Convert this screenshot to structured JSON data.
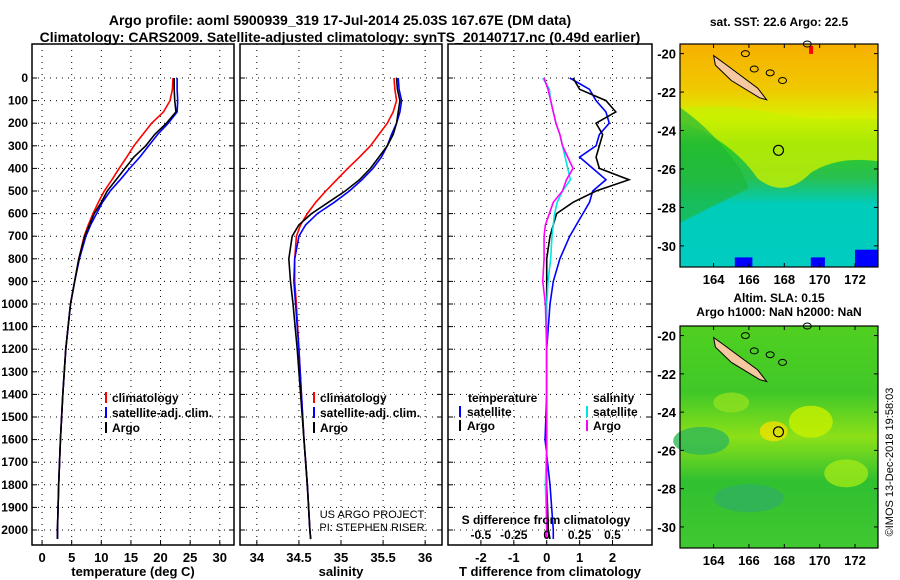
{
  "title_line1": "Argo profile: aoml 5900939_319 17-Jul-2014 25.03S 167.67E (DM data)",
  "title_line2": "Climatology: CARS2009. Satellite-adjusted climatology: synTS_20140717.nc (0.49d earlier)",
  "copyright": "©IMOS 13-Dec-2018 19:58:03",
  "attribution": [
    "US ARGO PROJECT",
    "PI: STEPHEN RISER"
  ],
  "colors": {
    "climatology": "#ff0000",
    "satellite": "#0000ff",
    "argo": "#000000",
    "sal_satellite": "#00e5e5",
    "sal_argo": "#ff00ff"
  },
  "chart_data": [
    {
      "type": "line",
      "xlabel": "temperature (deg C)",
      "ylabel": "",
      "xlim": [
        -1.7,
        32.4
      ],
      "ylim": [
        2050,
        -50
      ],
      "xticks": [
        "0",
        "5",
        "10",
        "15",
        "20",
        "25",
        "30"
      ],
      "xtick_values": [
        0,
        5,
        10,
        15,
        20,
        25,
        30
      ],
      "yticks": [
        "0",
        "100",
        "200",
        "300",
        "400",
        "500",
        "600",
        "700",
        "800",
        "900",
        "1000",
        "1100",
        "1200",
        "1300",
        "1400",
        "1500",
        "1600",
        "1700",
        "1800",
        "1900",
        "2000"
      ],
      "ytick_values": [
        0,
        100,
        200,
        300,
        400,
        500,
        600,
        700,
        800,
        900,
        1000,
        1100,
        1200,
        1300,
        1400,
        1500,
        1600,
        1700,
        1800,
        1900,
        2000
      ],
      "legend": [
        "climatology",
        "satellite-adj. clim.",
        "Argo"
      ],
      "depth": [
        0,
        50,
        100,
        150,
        200,
        250,
        300,
        350,
        400,
        450,
        500,
        550,
        600,
        650,
        700,
        800,
        900,
        1000,
        1200,
        1400,
        1600,
        1800,
        2000,
        2040
      ],
      "series": [
        {
          "name": "climatology",
          "values": [
            22.1,
            22.0,
            21.6,
            20.5,
            18.5,
            17,
            15.5,
            14.3,
            13,
            11.8,
            10.5,
            9.5,
            8.6,
            7.8,
            7.1,
            6.2,
            5.5,
            4.8,
            4,
            3.5,
            3.1,
            2.8,
            2.6,
            2.6
          ]
        },
        {
          "name": "satellite-adj. clim.",
          "values": [
            22.8,
            22.8,
            22.9,
            22.8,
            21.3,
            19.5,
            18,
            16.5,
            14.8,
            13.2,
            11.5,
            10.2,
            9.2,
            8.2,
            7.4,
            6.3,
            5.5,
            4.8,
            4,
            3.5,
            3.1,
            2.8,
            2.6,
            2.6
          ]
        },
        {
          "name": "Argo",
          "values": [
            22.3,
            22.3,
            22.4,
            22.6,
            21,
            19,
            17.5,
            15.5,
            14,
            12.5,
            11,
            10,
            8.8,
            8,
            7.2,
            6.2,
            5.5,
            4.8,
            4,
            3.5,
            3.1,
            2.8,
            2.6,
            2.6
          ]
        }
      ]
    },
    {
      "type": "line",
      "xlabel": "salinity",
      "xlim": [
        33.8,
        36.2
      ],
      "ylim": [
        2050,
        -50
      ],
      "xticks": [
        "34",
        "34.5",
        "35",
        "35.5",
        "36"
      ],
      "xtick_values": [
        34,
        34.5,
        35,
        35.5,
        36
      ],
      "legend": [
        "climatology",
        "satellite-adj. clim.",
        "Argo"
      ],
      "depth": [
        0,
        50,
        100,
        150,
        200,
        250,
        300,
        350,
        400,
        450,
        500,
        550,
        600,
        650,
        700,
        800,
        900,
        1000,
        1200,
        1400,
        1600,
        1800,
        2000,
        2040
      ],
      "series": [
        {
          "name": "climatology",
          "values": [
            35.63,
            35.64,
            35.66,
            35.62,
            35.55,
            35.45,
            35.35,
            35.22,
            35.08,
            34.95,
            34.82,
            34.7,
            34.6,
            34.52,
            34.47,
            34.45,
            34.45,
            34.47,
            34.5,
            34.53,
            34.56,
            34.6,
            34.63,
            34.64
          ]
        },
        {
          "name": "satellite-adj. clim.",
          "values": [
            35.68,
            35.69,
            35.72,
            35.7,
            35.66,
            35.6,
            35.55,
            35.48,
            35.38,
            35.25,
            35.1,
            34.92,
            34.72,
            34.58,
            34.5,
            34.45,
            34.44,
            34.46,
            34.5,
            34.53,
            34.56,
            34.6,
            34.63,
            34.64
          ]
        },
        {
          "name": "Argo",
          "values": [
            35.66,
            35.67,
            35.7,
            35.68,
            35.66,
            35.62,
            35.55,
            35.45,
            35.35,
            35.22,
            35.05,
            34.85,
            34.65,
            34.5,
            34.42,
            34.38,
            34.4,
            34.43,
            34.48,
            34.52,
            34.56,
            34.6,
            34.63,
            34.64
          ]
        }
      ]
    },
    {
      "type": "line",
      "xlabel": "T difference from climatology",
      "xlabel2": "S difference from climatology",
      "xlim": [
        -3,
        3.2
      ],
      "ylim": [
        2050,
        -50
      ],
      "xticks": [
        "-2",
        "-1",
        "0",
        "1",
        "2"
      ],
      "xtick_values": [
        -2,
        -1,
        0,
        1,
        2
      ],
      "s_xticks": [
        "-0.5",
        "-0.25",
        "0",
        "0.25",
        "0.5"
      ],
      "s_xtick_values": [
        -0.5,
        -0.25,
        0,
        0.25,
        0.5
      ],
      "legend_temperature": {
        "title": "temperature",
        "items": [
          "satellite",
          "Argo"
        ]
      },
      "legend_salinity": {
        "title": "salinity",
        "items": [
          "satellite",
          "Argo"
        ]
      },
      "depth": [
        0,
        50,
        100,
        150,
        200,
        250,
        300,
        350,
        400,
        450,
        500,
        550,
        600,
        650,
        700,
        800,
        900,
        1000,
        1200,
        1400,
        1600,
        1800,
        2000,
        2040
      ],
      "series": [
        {
          "name": "temperature satellite",
          "units": "degC",
          "values": [
            0.7,
            1.3,
            1.5,
            1.8,
            1.9,
            1.6,
            1.5,
            1.0,
            1.4,
            1.8,
            1.4,
            1.3,
            1.1,
            0.9,
            0.7,
            0.4,
            0.2,
            0.1,
            0,
            0,
            -0.05,
            0.1,
            0.2,
            0.2
          ]
        },
        {
          "name": "temperature Argo",
          "units": "degC",
          "values": [
            0.8,
            1.0,
            1.8,
            2.1,
            1.5,
            1.7,
            1.6,
            1.5,
            1.6,
            2.5,
            1.5,
            0.8,
            0.3,
            0.2,
            0.1,
            0,
            0,
            0,
            0,
            0,
            0,
            0,
            0.05,
            0.1
          ]
        },
        {
          "name": "salinity satellite",
          "units": "psu",
          "values": [
            -0.03,
            0.02,
            0.03,
            0.05,
            0.07,
            0.1,
            0.12,
            0.14,
            0.16,
            0.18,
            0.12,
            0.08,
            0.06,
            0.05,
            0.04,
            0.03,
            0.01,
            0,
            0,
            0,
            0,
            -0.01,
            0,
            0
          ]
        },
        {
          "name": "salinity Argo",
          "units": "psu",
          "values": [
            -0.02,
            0.01,
            0.03,
            0.05,
            0.07,
            0.1,
            0.12,
            0.16,
            0.2,
            0.15,
            0.12,
            0.05,
            0.02,
            -0.01,
            -0.02,
            -0.02,
            -0.03,
            -0.01,
            0,
            0,
            0,
            0,
            0,
            0
          ]
        }
      ]
    },
    {
      "type": "heatmap",
      "title": "sat. SST: 22.6 Argo: 22.5",
      "lon_range": [
        162.1,
        173.3
      ],
      "lat_range": [
        -31.1,
        -19.5
      ],
      "xticks": [
        "164",
        "166",
        "168",
        "170",
        "172"
      ],
      "xtick_values": [
        164,
        166,
        168,
        170,
        172
      ],
      "yticks": [
        "-20",
        "-22",
        "-24",
        "-26",
        "-28",
        "-30"
      ],
      "ytick_values": [
        -20,
        -22,
        -24,
        -26,
        -28,
        -30
      ],
      "float_position": {
        "lon": 167.67,
        "lat": -25.03
      }
    },
    {
      "type": "heatmap",
      "title": "Altim. SLA: 0.15",
      "subtitle": "Argo h1000: NaN h2000: NaN",
      "lon_range": [
        162.1,
        173.3
      ],
      "lat_range": [
        -31.1,
        -19.5
      ],
      "xticks": [
        "164",
        "166",
        "168",
        "170",
        "172"
      ],
      "xtick_values": [
        164,
        166,
        168,
        170,
        172
      ],
      "yticks": [
        "-20",
        "-22",
        "-24",
        "-26",
        "-28",
        "-30"
      ],
      "ytick_values": [
        -20,
        -22,
        -24,
        -26,
        -28,
        -30
      ],
      "float_position": {
        "lon": 167.67,
        "lat": -25.03
      }
    }
  ]
}
